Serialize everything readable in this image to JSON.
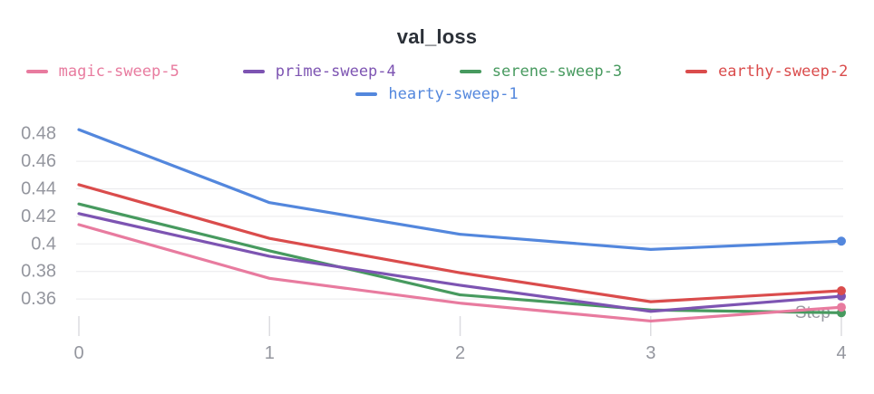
{
  "panel": {
    "title": "val_loss"
  },
  "chart_data": {
    "type": "line",
    "title": "val_loss",
    "xlabel": "Step",
    "ylabel": "",
    "x": [
      0,
      1,
      2,
      3,
      4
    ],
    "xlim": [
      0,
      4
    ],
    "ylim": [
      0.338,
      0.486
    ],
    "grid": true,
    "legend_position": "top",
    "x_ticks": [
      {
        "value": 0,
        "label": "0"
      },
      {
        "value": 1,
        "label": "1"
      },
      {
        "value": 2,
        "label": "2"
      },
      {
        "value": 3,
        "label": "3"
      },
      {
        "value": 4,
        "label": "4"
      }
    ],
    "y_ticks": [
      {
        "value": 0.48,
        "label": "0.48"
      },
      {
        "value": 0.46,
        "label": "0.46"
      },
      {
        "value": 0.44,
        "label": "0.44"
      },
      {
        "value": 0.42,
        "label": "0.42"
      },
      {
        "value": 0.4,
        "label": "0.4"
      },
      {
        "value": 0.38,
        "label": "0.38"
      },
      {
        "value": 0.36,
        "label": "0.36"
      }
    ],
    "gridline_values": [
      0.46,
      0.44,
      0.42,
      0.4,
      0.38,
      0.36
    ],
    "end_markers": true,
    "series": [
      {
        "name": "magic-sweep-5",
        "color": "#E87B9F",
        "values": [
          0.414,
          0.375,
          0.357,
          0.344,
          0.354
        ]
      },
      {
        "name": "prime-sweep-4",
        "color": "#7D54B2",
        "values": [
          0.422,
          0.391,
          0.37,
          0.351,
          0.362
        ]
      },
      {
        "name": "serene-sweep-3",
        "color": "#479A5F",
        "values": [
          0.429,
          0.395,
          0.363,
          0.352,
          0.35
        ]
      },
      {
        "name": "earthy-sweep-2",
        "color": "#DA4C4C",
        "values": [
          0.443,
          0.404,
          0.379,
          0.358,
          0.366
        ]
      },
      {
        "name": "hearty-sweep-1",
        "color": "#5387DD",
        "values": [
          0.483,
          0.43,
          0.407,
          0.396,
          0.402
        ]
      }
    ],
    "legend_rows": [
      [
        0,
        1,
        2,
        3
      ],
      [
        4
      ]
    ],
    "draw_order": [
      2,
      0,
      1,
      3,
      4
    ]
  },
  "colors": {
    "title_text": "#2b3038",
    "tick_text": "#94969e",
    "axis_title_text": "#9a9ca3",
    "gridline": "#e9e9ec",
    "tick_mark": "#dcdce0",
    "background": "#ffffff"
  }
}
